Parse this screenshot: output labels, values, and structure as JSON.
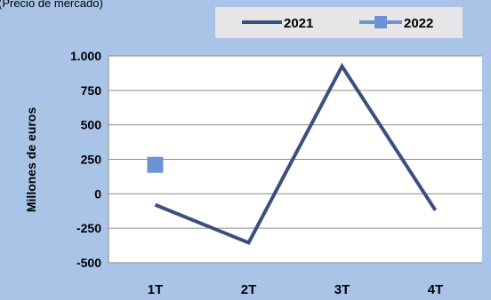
{
  "top_note": "(Precio de mercado)",
  "chart_data": {
    "type": "line",
    "title": "",
    "xlabel": "",
    "ylabel": "Millones de euros",
    "categories": [
      "1T",
      "2T",
      "3T",
      "4T"
    ],
    "ylim": [
      -500,
      1000
    ],
    "yticks": [
      -500,
      -250,
      0,
      250,
      500,
      750,
      1000
    ],
    "ytick_labels": [
      "-500",
      "-250",
      "0",
      "250",
      "500",
      "750",
      "1.000"
    ],
    "grid": true,
    "legend_position": "top-right",
    "series": [
      {
        "name": "2021",
        "values": [
          -80,
          -355,
          925,
          -120
        ],
        "color": "#3b4f7f",
        "marker": "none"
      },
      {
        "name": "2022",
        "values": [
          210,
          null,
          null,
          null
        ],
        "color": "#6b93d6",
        "marker": "square"
      }
    ]
  }
}
